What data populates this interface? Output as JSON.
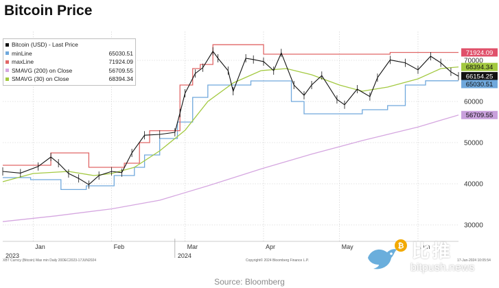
{
  "page_title": "Bitcoin Price",
  "chart_data": {
    "type": "line",
    "title": "",
    "xlabel": "",
    "ylabel": "",
    "ylim": [
      26000,
      77000
    ],
    "y_ticks": [
      30000,
      40000,
      50000,
      60000,
      70000
    ],
    "y_tick_labels": [
      "30000",
      "40000",
      "50000",
      "60000",
      "70000"
    ],
    "x_tick_labels": [
      {
        "label": "Jan",
        "date": "2024-01-01"
      },
      {
        "label": "Feb",
        "date": "2024-02-01"
      },
      {
        "label": "Mar",
        "date": "2024-03-01"
      },
      {
        "label": "Apr",
        "date": "2024-04-01"
      },
      {
        "label": "May",
        "date": "2024-05-01"
      },
      {
        "label": "Jun",
        "date": "2024-06-01"
      }
    ],
    "year_labels": [
      {
        "label": "2023",
        "date": "2023-12-20"
      },
      {
        "label": "2024",
        "date": "2024-02-26"
      }
    ],
    "x_range": [
      "2023-12-20",
      "2024-06-17"
    ],
    "grid": true,
    "legend_position": "top-left",
    "legend": [
      {
        "name": "Bitcoin (USD) - Last Price",
        "value": "",
        "color": "#111111"
      },
      {
        "name": "minLine",
        "value": "65030.51",
        "color": "#6fa8dc"
      },
      {
        "name": "maxLine",
        "value": "71924.09",
        "color": "#e06666"
      },
      {
        "name": "SMAVG (200)  on Close",
        "value": "56709.55",
        "color": "#d5a6e0"
      },
      {
        "name": "SMAVG (30)  on Close",
        "value": "68394.34",
        "color": "#a3c940"
      }
    ],
    "price_tags": [
      {
        "value": 71924.09,
        "label": "71924.09",
        "bg": "#e0506a",
        "fg": "#ffffff"
      },
      {
        "value": 68394.34,
        "label": "68394.34",
        "bg": "#a3c940",
        "fg": "#111111"
      },
      {
        "value": 66154.25,
        "label": "66154.25",
        "bg": "#111111",
        "fg": "#ffffff"
      },
      {
        "value": 65030.51,
        "label": "65030.51",
        "bg": "#6fa8dc",
        "fg": "#111111"
      },
      {
        "value": 56709.55,
        "label": "56709.55",
        "bg": "#c9a0dc",
        "fg": "#111111"
      }
    ],
    "series": [
      {
        "name": "Bitcoin (USD) - Last Price",
        "color": "#111111",
        "x": [
          "2023-12-20",
          "2023-12-27",
          "2024-01-03",
          "2024-01-08",
          "2024-01-11",
          "2024-01-15",
          "2024-01-19",
          "2024-01-23",
          "2024-01-27",
          "2024-02-01",
          "2024-02-05",
          "2024-02-09",
          "2024-02-14",
          "2024-02-20",
          "2024-02-26",
          "2024-02-28",
          "2024-03-01",
          "2024-03-05",
          "2024-03-08",
          "2024-03-12",
          "2024-03-14",
          "2024-03-18",
          "2024-03-20",
          "2024-03-25",
          "2024-03-28",
          "2024-04-01",
          "2024-04-05",
          "2024-04-08",
          "2024-04-13",
          "2024-04-17",
          "2024-04-20",
          "2024-04-24",
          "2024-04-30",
          "2024-05-03",
          "2024-05-08",
          "2024-05-13",
          "2024-05-16",
          "2024-05-21",
          "2024-05-27",
          "2024-06-01",
          "2024-06-06",
          "2024-06-10",
          "2024-06-14",
          "2024-06-17"
        ],
        "values": [
          43000,
          42600,
          44200,
          46500,
          45000,
          42500,
          41300,
          39800,
          42000,
          43000,
          42700,
          47500,
          51800,
          52000,
          52500,
          57200,
          62000,
          66800,
          68200,
          72200,
          70500,
          67500,
          62500,
          70500,
          70200,
          69700,
          67500,
          71800,
          64000,
          61500,
          64000,
          66300,
          60500,
          59200,
          63000,
          61200,
          65800,
          70100,
          69400,
          67700,
          71000,
          69400,
          67200,
          66154.25
        ]
      },
      {
        "name": "minLine",
        "color": "#6fa8dc",
        "x": [
          "2023-12-20",
          "2023-12-31",
          "2023-12-31",
          "2024-01-12",
          "2024-01-12",
          "2024-01-22",
          "2024-01-22",
          "2024-02-02",
          "2024-02-02",
          "2024-02-10",
          "2024-02-10",
          "2024-02-14",
          "2024-02-14",
          "2024-02-20",
          "2024-02-20",
          "2024-02-27",
          "2024-02-27",
          "2024-03-04",
          "2024-03-04",
          "2024-03-10",
          "2024-03-10",
          "2024-03-27",
          "2024-03-27",
          "2024-04-12",
          "2024-04-12",
          "2024-04-17",
          "2024-04-17",
          "2024-05-01",
          "2024-05-01",
          "2024-05-10",
          "2024-05-10",
          "2024-05-20",
          "2024-05-20",
          "2024-05-27",
          "2024-05-27",
          "2024-06-04",
          "2024-06-04",
          "2024-06-17"
        ],
        "values": [
          41500,
          41500,
          41000,
          41000,
          38600,
          38600,
          39500,
          39500,
          42000,
          42000,
          44000,
          44000,
          47000,
          47000,
          51000,
          51000,
          55000,
          55000,
          61000,
          61000,
          64000,
          64000,
          65000,
          65000,
          60000,
          60000,
          57000,
          57000,
          57000,
          57000,
          58000,
          58000,
          59000,
          59000,
          64000,
          64000,
          65030.51,
          65030.51
        ]
      },
      {
        "name": "maxLine",
        "color": "#e06666",
        "x": [
          "2023-12-20",
          "2023-12-26",
          "2023-12-26",
          "2024-01-08",
          "2024-01-08",
          "2024-01-23",
          "2024-01-23",
          "2024-02-06",
          "2024-02-06",
          "2024-02-12",
          "2024-02-12",
          "2024-02-16",
          "2024-02-16",
          "2024-02-28",
          "2024-02-28",
          "2024-03-04",
          "2024-03-04",
          "2024-03-07",
          "2024-03-07",
          "2024-03-12",
          "2024-03-12",
          "2024-04-01",
          "2024-04-01",
          "2024-04-16",
          "2024-04-16",
          "2024-05-21",
          "2024-05-21",
          "2024-06-04",
          "2024-06-04",
          "2024-06-17"
        ],
        "values": [
          44500,
          44500,
          44500,
          44500,
          47500,
          47500,
          44000,
          44000,
          45000,
          45000,
          50000,
          50000,
          52900,
          52900,
          64000,
          64000,
          68000,
          68000,
          69000,
          69000,
          73800,
          73800,
          71500,
          71500,
          71500,
          71500,
          71924.09,
          71924.09,
          71924.09,
          71924.09
        ]
      },
      {
        "name": "SMAVG (30)  on Close",
        "color": "#a3c940",
        "x": [
          "2023-12-20",
          "2024-01-01",
          "2024-01-15",
          "2024-01-25",
          "2024-02-01",
          "2024-02-10",
          "2024-02-20",
          "2024-03-01",
          "2024-03-10",
          "2024-03-20",
          "2024-03-31",
          "2024-04-10",
          "2024-04-20",
          "2024-05-01",
          "2024-05-10",
          "2024-05-20",
          "2024-06-01",
          "2024-06-10",
          "2024-06-17"
        ],
        "values": [
          40500,
          42500,
          43000,
          42000,
          42500,
          44000,
          48000,
          53000,
          60000,
          64500,
          67500,
          68000,
          66500,
          64000,
          62500,
          63500,
          65500,
          68000,
          68394.34
        ]
      },
      {
        "name": "SMAVG (200)  on Close",
        "color": "#d5a6e0",
        "x": [
          "2023-12-20",
          "2024-01-10",
          "2024-02-01",
          "2024-02-20",
          "2024-03-10",
          "2024-04-01",
          "2024-04-20",
          "2024-05-10",
          "2024-06-01",
          "2024-06-17"
        ],
        "values": [
          30800,
          32200,
          33900,
          36000,
          39500,
          43800,
          47200,
          50500,
          53800,
          56709.55
        ]
      }
    ]
  },
  "footer": {
    "left": "XBT Curncy (Bitcoin) Max min  Daily 20DEC2023-17JUN2024",
    "center": "Copyright© 2024 Bloomberg Finance L.P.",
    "right": "17-Jun-2024 10:05:54"
  },
  "source": "Source: Bloomberg",
  "watermark": {
    "cn": "比推",
    "domain": "bitpush.news",
    "badge": "₿"
  }
}
